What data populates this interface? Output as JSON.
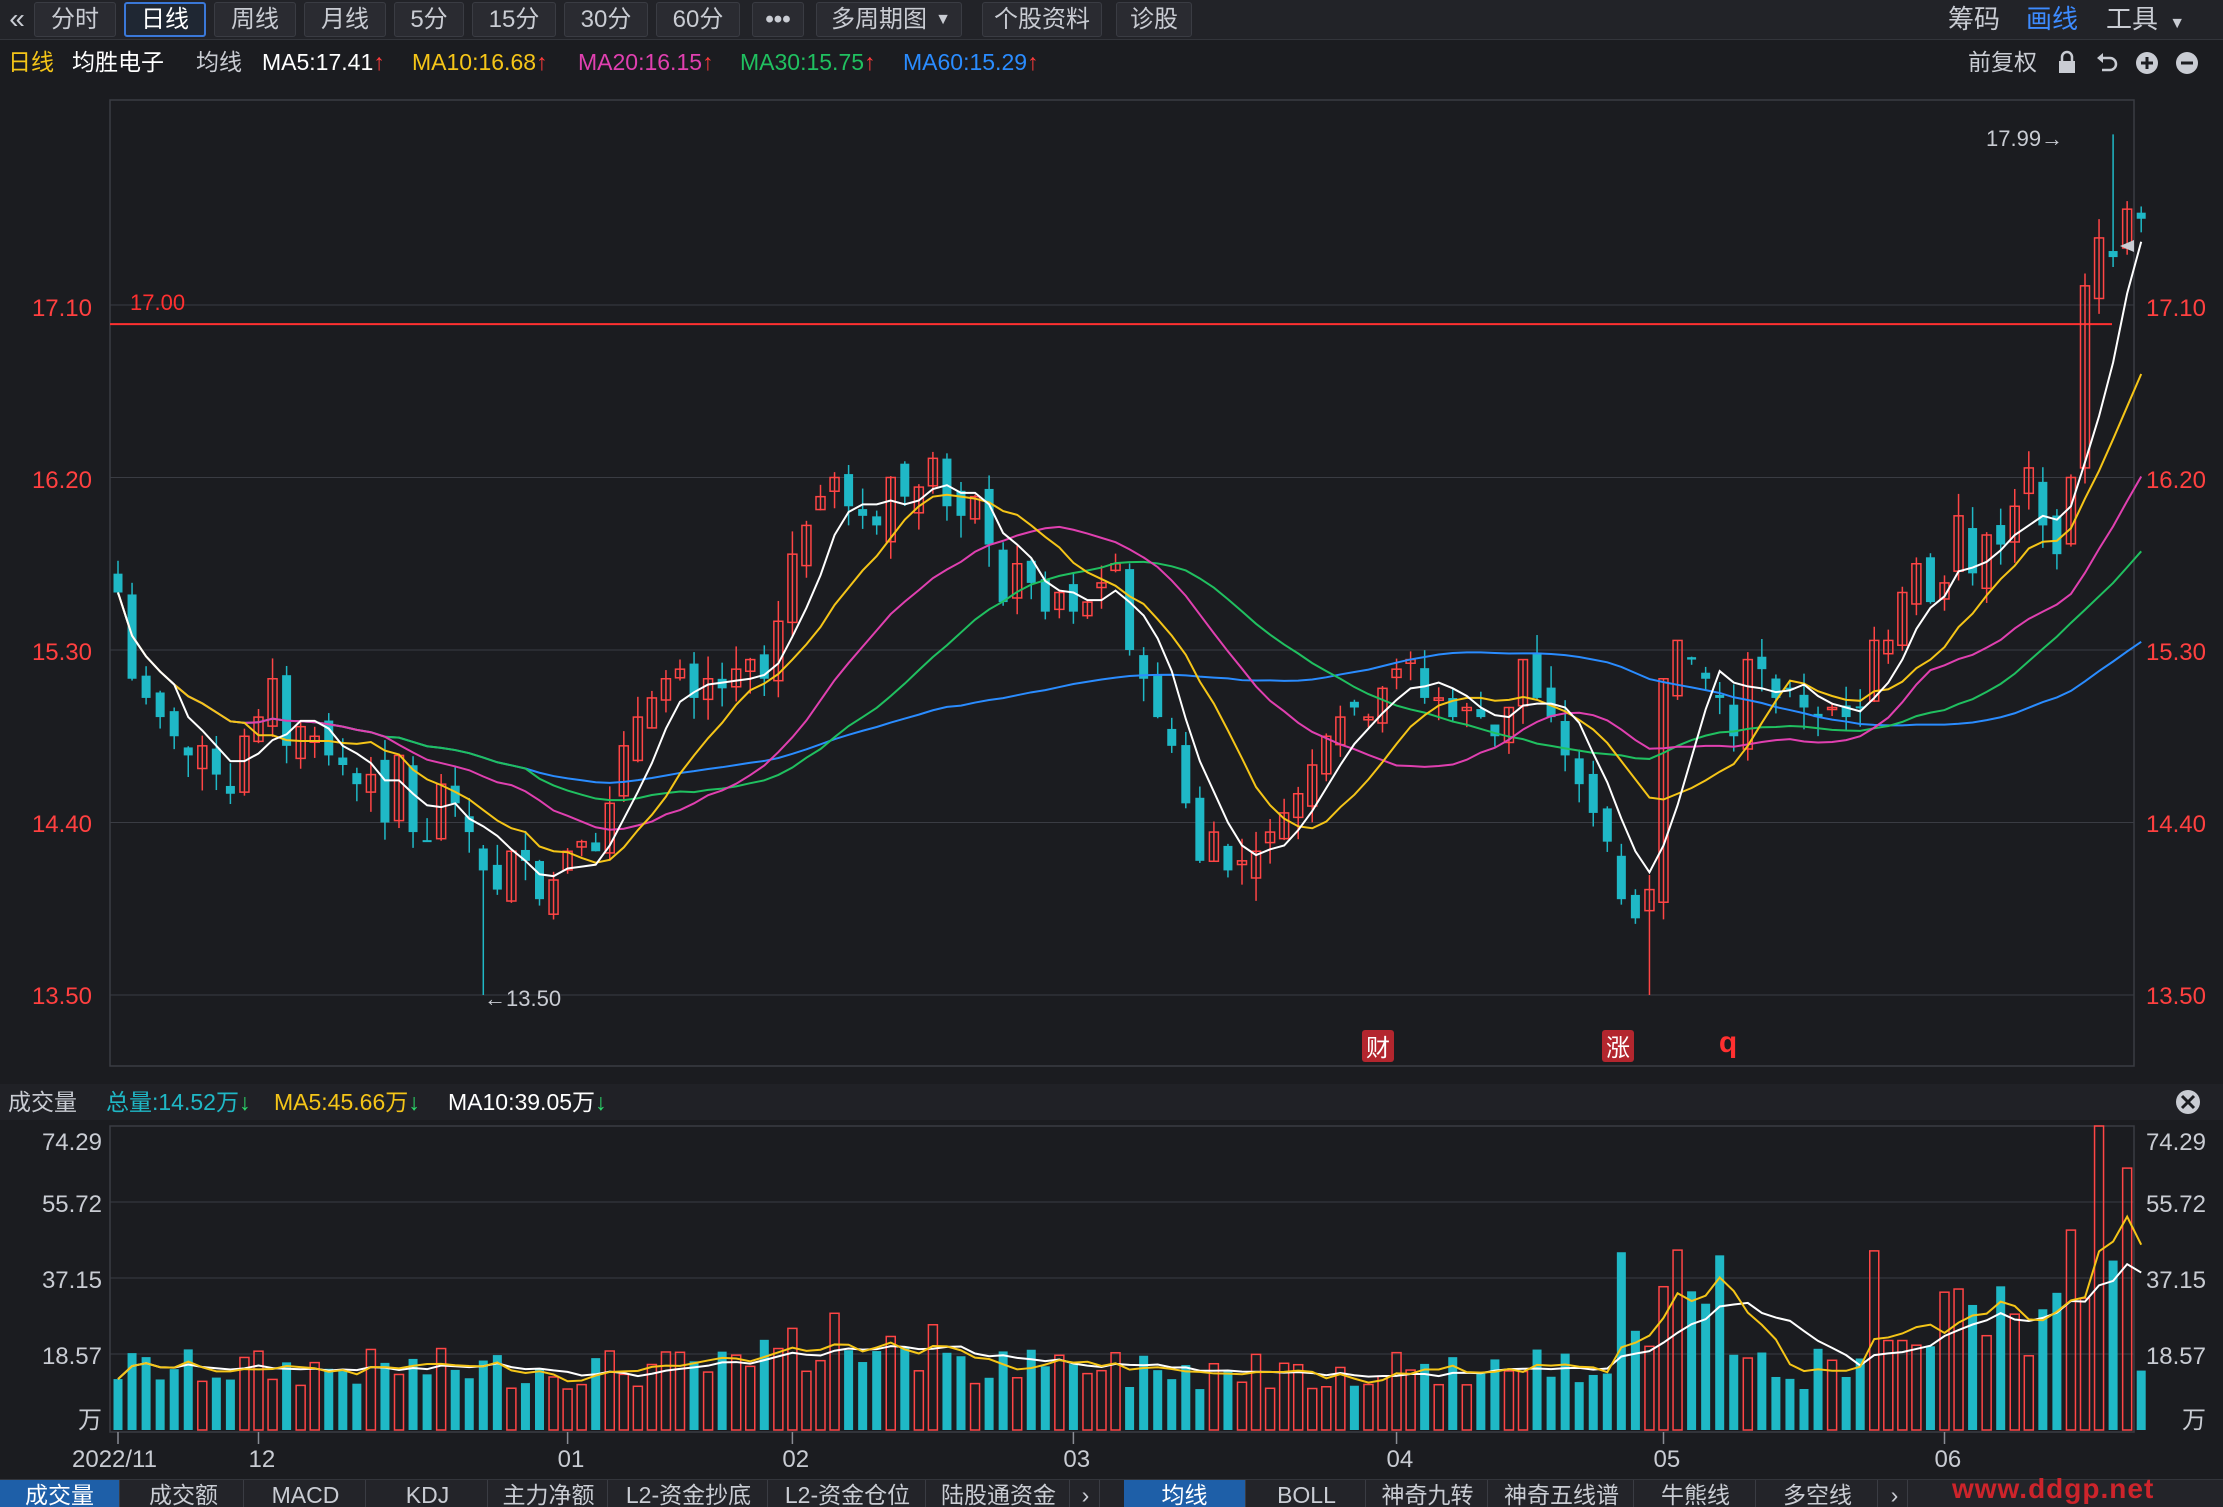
{
  "toolbar": {
    "back_icon": "double-chevron-left-icon",
    "periods": [
      "分时",
      "日线",
      "周线",
      "月线",
      "5分",
      "15分",
      "30分",
      "60分"
    ],
    "active_period": "日线",
    "more_label": "•••",
    "multi_period_label": "多周期图",
    "stock_info_label": "个股资料",
    "diagnosis_label": "诊股",
    "right_items": [
      "筹码",
      "画线",
      "工具"
    ],
    "right_selected": "画线"
  },
  "ma_row": {
    "period_label": "日线",
    "stock_name": "均胜电子",
    "line_label": "均线",
    "ma5": "MA5:17.41",
    "ma10": "MA10:16.68",
    "ma20": "MA20:16.15",
    "ma30": "MA30:15.75",
    "ma60": "MA60:15.29",
    "adjust_label": "前复权",
    "up_arrow": "↑",
    "colors": {
      "ma5": "#ffffff",
      "ma10": "#f5c518",
      "ma20": "#e040b0",
      "ma30": "#20c060",
      "ma60": "#2a8cff"
    }
  },
  "volume_header": {
    "title": "成交量",
    "total": "总量:14.52万",
    "ma5": "MA5:45.66万",
    "ma10": "MA10:39.05万",
    "down_arrow": "↓"
  },
  "annotations": {
    "high_label": "17.99→",
    "low_label": "←13.50",
    "hline_label": "17.00",
    "hline_value": 17.0,
    "marker_cai": "财",
    "marker_zhang": "涨",
    "marker_q": "q"
  },
  "chart_data": {
    "type": "candlestick",
    "stock": "均胜电子",
    "period": "日线",
    "price_axis_ticks": [
      "17.10",
      "16.20",
      "15.30",
      "14.40",
      "13.50"
    ],
    "price_ylim": [
      13.13,
      17.99
    ],
    "volume_axis_ticks": [
      "74.29",
      "55.72",
      "37.15",
      "18.57",
      "万"
    ],
    "volume_ylim": [
      0,
      74.29
    ],
    "x_tick_labels": [
      "2022/11",
      "12",
      "01",
      "02",
      "03",
      "04",
      "05",
      "06"
    ],
    "x_tick_index": [
      0,
      10,
      32,
      48,
      68,
      91,
      110,
      130
    ],
    "period_high": 17.99,
    "period_low": 13.5,
    "horizontal_line": 17.0,
    "legend": [
      "MA5",
      "MA10",
      "MA20",
      "MA30",
      "MA60"
    ],
    "ma_last": {
      "MA5": 17.41,
      "MA10": 16.68,
      "MA20": 16.15,
      "MA30": 15.75,
      "MA60": 15.29
    },
    "volume_last": {
      "total": 14.52,
      "MA5": 45.66,
      "MA10": 39.05
    },
    "close": [
      15.6,
      15.15,
      15.05,
      14.95,
      14.85,
      14.75,
      14.8,
      14.65,
      14.55,
      14.85,
      14.95,
      15.15,
      14.8,
      14.9,
      14.85,
      14.75,
      14.7,
      14.6,
      14.65,
      14.4,
      14.75,
      14.35,
      14.3,
      14.6,
      14.5,
      14.35,
      14.15,
      14.05,
      14.25,
      14.2,
      14.0,
      14.1,
      14.25,
      14.3,
      14.25,
      14.5,
      14.8,
      14.95,
      15.05,
      15.15,
      15.2,
      15.05,
      15.15,
      15.1,
      15.2,
      15.25,
      15.15,
      15.45,
      15.8,
      15.95,
      16.1,
      16.2,
      16.05,
      16.0,
      15.95,
      16.2,
      16.1,
      16.15,
      16.3,
      16.05,
      16.0,
      16.1,
      15.85,
      15.55,
      15.75,
      15.65,
      15.5,
      15.6,
      15.5,
      15.55,
      15.65,
      15.75,
      15.3,
      15.15,
      14.95,
      14.8,
      14.5,
      14.2,
      14.35,
      14.15,
      14.2,
      14.25,
      14.35,
      14.45,
      14.55,
      14.7,
      14.85,
      14.95,
      15.0,
      14.95,
      15.1,
      15.2,
      15.25,
      15.05,
      15.05,
      14.95,
      15.0,
      14.95,
      14.85,
      15.0,
      15.25,
      15.05,
      14.95,
      14.75,
      14.6,
      14.45,
      14.3,
      14.0,
      13.9,
      14.05,
      15.15,
      15.35,
      15.25,
      15.15,
      15.05,
      14.85,
      15.25,
      15.2,
      15.05,
      15.1,
      15.0,
      14.95,
      15.0,
      14.95,
      15.0,
      15.35,
      15.35,
      15.6,
      15.75,
      15.55,
      15.65,
      16.0,
      15.7,
      15.9,
      15.85,
      16.05,
      16.25,
      15.95,
      15.8,
      16.2,
      17.2,
      17.45,
      17.35,
      17.6,
      17.55
    ]
  }
}
